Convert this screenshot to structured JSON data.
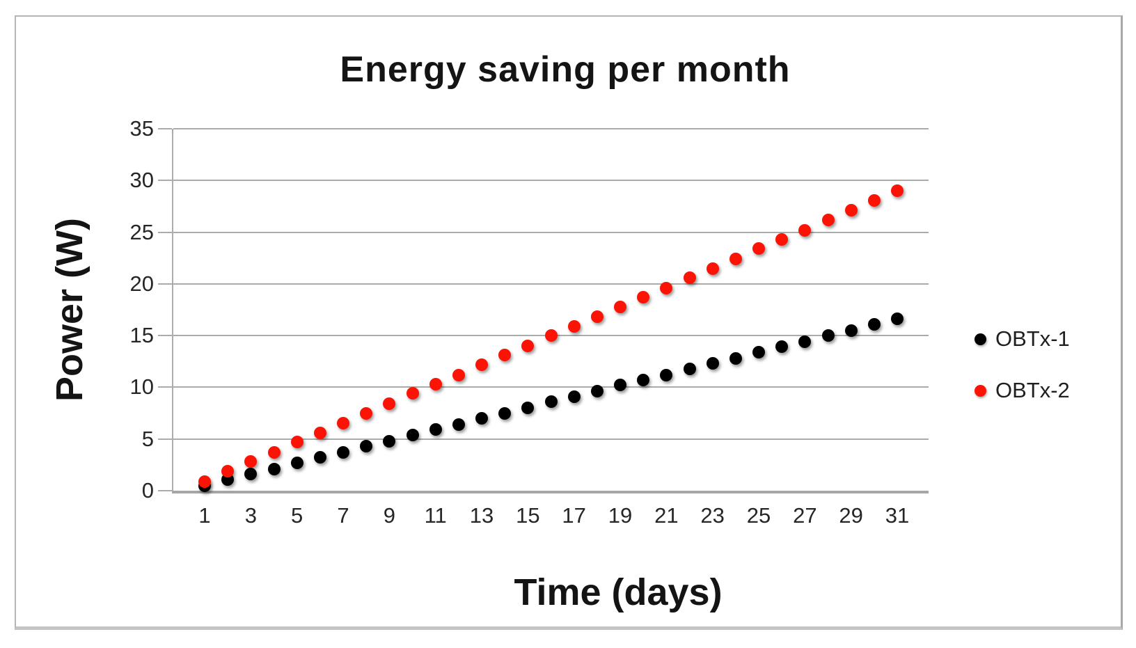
{
  "chart_data": {
    "type": "scatter",
    "title": "Energy saving per month",
    "xlabel": "Time (days)",
    "ylabel": "Power (W)",
    "x": [
      1,
      2,
      3,
      4,
      5,
      6,
      7,
      8,
      9,
      10,
      11,
      12,
      13,
      14,
      15,
      16,
      17,
      18,
      19,
      20,
      21,
      22,
      23,
      24,
      25,
      26,
      27,
      28,
      29,
      30,
      31
    ],
    "x_axis_tick_labels": [
      "1",
      "3",
      "5",
      "7",
      "9",
      "11",
      "13",
      "15",
      "17",
      "19",
      "21",
      "23",
      "25",
      "27",
      "29",
      "31"
    ],
    "ylim": [
      0,
      35
    ],
    "y_ticks": [
      0,
      5,
      10,
      15,
      20,
      25,
      30,
      35
    ],
    "grid": "horizontal",
    "legend_position": "right-middle",
    "series": [
      {
        "name": "OBTx-1",
        "marker": "circle",
        "color": "#000000",
        "values": [
          0.5,
          1.1,
          1.6,
          2.1,
          2.7,
          3.2,
          3.7,
          4.3,
          4.8,
          5.4,
          5.9,
          6.4,
          7.0,
          7.5,
          8.0,
          8.6,
          9.1,
          9.6,
          10.2,
          10.7,
          11.2,
          11.8,
          12.3,
          12.8,
          13.4,
          13.9,
          14.4,
          15.0,
          15.5,
          16.1,
          16.6
        ]
      },
      {
        "name": "OBTx-2",
        "marker": "circle",
        "color": "#fb1306",
        "values": [
          0.9,
          1.9,
          2.8,
          3.7,
          4.7,
          5.6,
          6.5,
          7.5,
          8.4,
          9.4,
          10.3,
          11.2,
          12.2,
          13.1,
          14.0,
          15.0,
          15.9,
          16.8,
          17.8,
          18.7,
          19.6,
          20.6,
          21.5,
          22.4,
          23.4,
          24.3,
          25.2,
          26.2,
          27.1,
          28.1,
          29.0
        ]
      }
    ],
    "colors": {
      "gridline": "#ababab",
      "axis_line": "#a6a6a6",
      "text": "#262626",
      "title_text": "#141414",
      "frame_border": "#b5b5b5",
      "background": "#ffffff"
    }
  }
}
